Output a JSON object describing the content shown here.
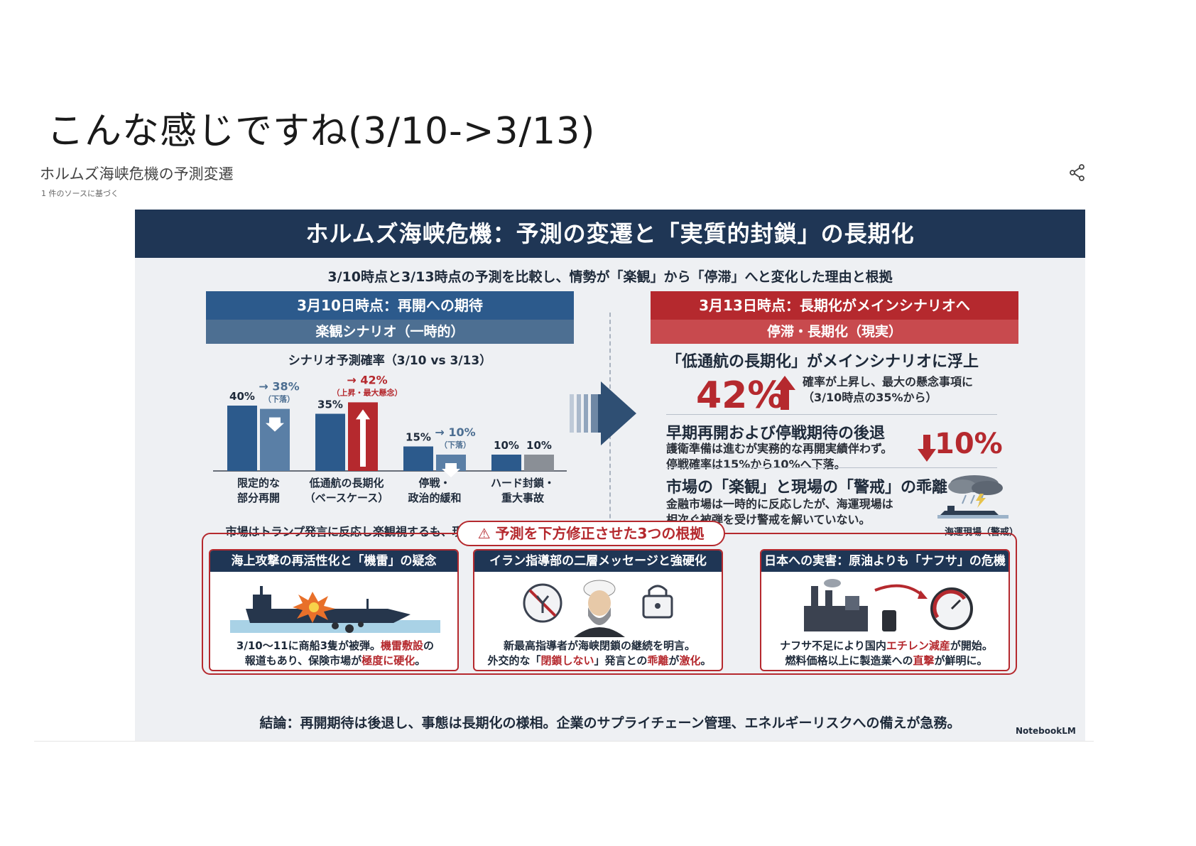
{
  "page": {
    "title": "こんな感じですね(3/10->3/13)",
    "doc_title": "ホルムズ海峡危機の予測変遷",
    "doc_sub": "1 件のソースに基づく",
    "share_icon": "share-icon"
  },
  "infographic": {
    "banner": "ホルムズ海峡危機：予測の変遷と「実質的封鎖」の長期化",
    "subhead": "3/10時点と3/13時点の予測を比較し、情勢が「楽観」から「停滞」へと変化した理由と根拠",
    "left": {
      "head": "3月10日時点：再開への期待",
      "sub": "楽観シナリオ（一時的）",
      "chart_title": "シナリオ予測確率（3/10 vs 3/13）",
      "caption": "市場はトランプ発言に反応し楽観視するも、現場は警戒を継続。"
    },
    "right": {
      "head": "3月13日時点：長期化がメインシナリオへ",
      "sub": "停滞・長期化（現実）",
      "b1_h": "「低通航の長期化」がメインシナリオに浮上",
      "b1_big": "42%",
      "b1_t1": "確率が上昇し、最大の懸念事項に",
      "b1_t2": "（3/10時点の35%から）",
      "b2_h": "早期再開および停戦期待の後退",
      "b2_t1": "護衛準備は進むが実務的な再開実績伴わず。",
      "b2_t2": "停戦確率は15%から10%へ下落。",
      "b2_big": "10%",
      "b3_h": "市場の「楽観」と現場の「警戒」の乖離",
      "b3_t1": "金融市場は一時的に反応したが、海運現場は",
      "b3_t2": "相次ぐ被弾を受け警戒を解いていない。",
      "storm_label": "海運現場（警戒）"
    },
    "reasons": {
      "pill": "予測を下方修正させた3つの根拠",
      "cards": [
        {
          "head": "海上攻撃の再活性化と「機雷」の疑念",
          "t1a": "3/10〜11に商船3隻が被弾。",
          "t1b": "機雷敷設",
          "t1c": "の",
          "t2a": "報道もあり、保険市場が",
          "t2b": "極度に硬化",
          "t2c": "。"
        },
        {
          "head": "イラン指導部の二層メッセージと強硬化",
          "t1a": "新最高指導者が海峡閉鎖の継続を明言。",
          "t1b": "",
          "t1c": "",
          "t2a": "外交的な「",
          "t2b": "閉鎖しない",
          "t2c": "」発言との",
          "t2d": "乖離",
          "t2e": "が",
          "t2f": "激化",
          "t2g": "。"
        },
        {
          "head": "日本への実害：原油よりも「ナフサ」の危機",
          "t1a": "ナフサ不足により国内",
          "t1b": "エチレン減産",
          "t1c": "が開始。",
          "t2a": "燃料価格以上に製造業への",
          "t2b": "直撃",
          "t2c": "が鮮明に。"
        }
      ]
    },
    "conclusion": "結論：再開期待は後退し、事態は長期化の様相。企業のサプライチェーン管理、エネルギーリスクへの備えが急務。",
    "brand": "NotebookLM",
    "colors": {
      "navy": "#1f3655",
      "blue": "#2c5a8c",
      "red": "#b5292e",
      "grey": "#8a8f96"
    }
  },
  "chart_data": {
    "type": "bar",
    "title": "シナリオ予測確率（3/10 vs 3/13）",
    "categories": [
      "限定的な\n部分再開",
      "低通航の長期化\n（ベースケース）",
      "停戦・\n政治的緩和",
      "ハード封鎖・\n重大事故"
    ],
    "series": [
      {
        "values": [
          40,
          35,
          15,
          10
        ]
      },
      {
        "values": [
          38,
          42,
          10,
          10
        ]
      }
    ],
    "value_labels_a": [
      "40%",
      "35%",
      "15%",
      "10%"
    ],
    "value_labels_b": [
      "→ 38%",
      "→ 42%",
      "→ 10%",
      "10%"
    ],
    "notes_b": [
      "（下落）",
      "（上昇・最大懸念）",
      "（下落）",
      ""
    ],
    "ylim": [
      0,
      50
    ]
  }
}
